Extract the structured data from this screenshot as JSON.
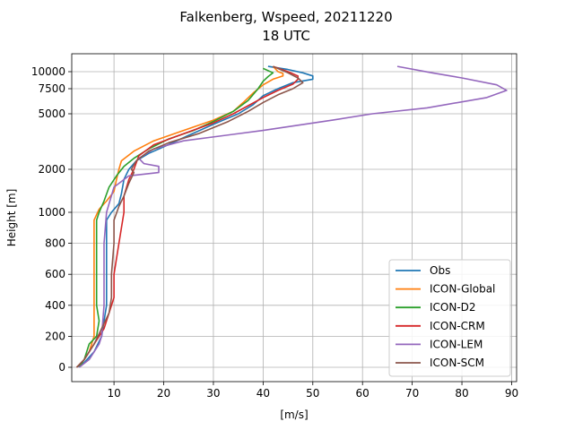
{
  "chart_data": {
    "type": "line",
    "title": "Falkenberg, Wspeed, 20211220",
    "subtitle": "18 UTC",
    "xlabel": "[m/s]",
    "ylabel": "Height [m]",
    "xlim": [
      1.5,
      91
    ],
    "x_ticks": [
      10,
      20,
      30,
      40,
      50,
      60,
      70,
      80,
      90
    ],
    "y_ticks": [
      {
        "value": 0,
        "label": "0"
      },
      {
        "value": 200,
        "label": "200"
      },
      {
        "value": 400,
        "label": "400"
      },
      {
        "value": 600,
        "label": "600"
      },
      {
        "value": 800,
        "label": "800"
      },
      {
        "value": 1000,
        "label": "1000"
      },
      {
        "value": 2000,
        "label": "2000"
      },
      {
        "value": 5000,
        "label": "5000"
      },
      {
        "value": 7500,
        "label": "7500"
      },
      {
        "value": 10000,
        "label": "10000"
      }
    ],
    "grid": true,
    "legend_position": "lower-right",
    "series": [
      {
        "name": "Obs",
        "color": "#1f77b4",
        "points": [
          [
            2.5,
            0
          ],
          [
            4,
            30
          ],
          [
            6,
            100
          ],
          [
            7.5,
            200
          ],
          [
            8.5,
            400
          ],
          [
            8.5,
            600
          ],
          [
            8.5,
            800
          ],
          [
            8.5,
            950
          ],
          [
            9.5,
            1000
          ],
          [
            11,
            1150
          ],
          [
            11.5,
            1350
          ],
          [
            12,
            1700
          ],
          [
            13,
            2000
          ],
          [
            14.5,
            2300
          ],
          [
            17,
            2600
          ],
          [
            20,
            2900
          ],
          [
            25,
            3500
          ],
          [
            30,
            4200
          ],
          [
            35,
            5000
          ],
          [
            38,
            5800
          ],
          [
            40,
            6700
          ],
          [
            43,
            7500
          ],
          [
            46,
            8300
          ],
          [
            50,
            8800
          ],
          [
            50,
            9300
          ],
          [
            48,
            9800
          ],
          [
            45,
            10200
          ],
          [
            41,
            10500
          ]
        ]
      },
      {
        "name": "ICON-Global",
        "color": "#ff7f0e",
        "points": [
          [
            2.5,
            0
          ],
          [
            4,
            50
          ],
          [
            5,
            100
          ],
          [
            6,
            200
          ],
          [
            6,
            400
          ],
          [
            6,
            600
          ],
          [
            6,
            800
          ],
          [
            6,
            950
          ],
          [
            7,
            1050
          ],
          [
            8.5,
            1200
          ],
          [
            10,
            1400
          ],
          [
            10.5,
            1700
          ],
          [
            11,
            2000
          ],
          [
            11.5,
            2300
          ],
          [
            14,
            2700
          ],
          [
            18,
            3200
          ],
          [
            24,
            3800
          ],
          [
            30,
            4500
          ],
          [
            34,
            5200
          ],
          [
            36,
            6000
          ],
          [
            38,
            7000
          ],
          [
            40,
            8000
          ],
          [
            42,
            8800
          ],
          [
            44,
            9300
          ],
          [
            44,
            9700
          ],
          [
            43,
            10000
          ],
          [
            42,
            10500
          ]
        ]
      },
      {
        "name": "ICON-D2",
        "color": "#2ca02c",
        "points": [
          [
            3,
            0
          ],
          [
            4,
            50
          ],
          [
            5,
            150
          ],
          [
            6.5,
            200
          ],
          [
            7,
            300
          ],
          [
            6.5,
            400
          ],
          [
            6.5,
            600
          ],
          [
            6.5,
            800
          ],
          [
            6.5,
            950
          ],
          [
            7,
            1000
          ],
          [
            8,
            1200
          ],
          [
            9,
            1500
          ],
          [
            10.5,
            1800
          ],
          [
            12,
            2100
          ],
          [
            14,
            2400
          ],
          [
            17,
            2800
          ],
          [
            21,
            3300
          ],
          [
            26,
            3800
          ],
          [
            30,
            4400
          ],
          [
            34,
            5200
          ],
          [
            37,
            6200
          ],
          [
            39,
            7500
          ],
          [
            40,
            8500
          ],
          [
            41,
            9200
          ],
          [
            42,
            9800
          ],
          [
            40,
            10300
          ]
        ]
      },
      {
        "name": "ICON-CRM",
        "color": "#d62728",
        "points": [
          [
            2.5,
            0
          ],
          [
            4,
            50
          ],
          [
            6,
            150
          ],
          [
            8,
            250
          ],
          [
            9,
            350
          ],
          [
            10,
            450
          ],
          [
            10,
            600
          ],
          [
            11,
            800
          ],
          [
            12,
            1000
          ],
          [
            12,
            1300
          ],
          [
            13,
            1700
          ],
          [
            14,
            2000
          ],
          [
            15,
            2500
          ],
          [
            18,
            3000
          ],
          [
            24,
            3600
          ],
          [
            30,
            4300
          ],
          [
            34,
            5000
          ],
          [
            37,
            5700
          ],
          [
            40,
            6500
          ],
          [
            43,
            7300
          ],
          [
            46,
            8100
          ],
          [
            47,
            8800
          ],
          [
            47,
            9300
          ],
          [
            45,
            10000
          ],
          [
            42,
            10500
          ]
        ]
      },
      {
        "name": "ICON-LEM",
        "color": "#9467bd",
        "points": [
          [
            3,
            0
          ],
          [
            5,
            50
          ],
          [
            7,
            150
          ],
          [
            7.5,
            200
          ],
          [
            8,
            400
          ],
          [
            8,
            600
          ],
          [
            8,
            800
          ],
          [
            8.5,
            1000
          ],
          [
            10,
            1500
          ],
          [
            13,
            1800
          ],
          [
            19,
            1900
          ],
          [
            19,
            2100
          ],
          [
            16,
            2200
          ],
          [
            15,
            2400
          ],
          [
            18,
            2800
          ],
          [
            24,
            3200
          ],
          [
            40,
            3800
          ],
          [
            54,
            4500
          ],
          [
            62,
            5000
          ],
          [
            73,
            5500
          ],
          [
            85,
            6500
          ],
          [
            89,
            7300
          ],
          [
            87,
            8000
          ],
          [
            80,
            9000
          ],
          [
            74,
            9800
          ],
          [
            67,
            10500
          ]
        ]
      },
      {
        "name": "ICON-SCM",
        "color": "#8c564b",
        "points": [
          [
            2.5,
            0
          ],
          [
            4,
            50
          ],
          [
            6,
            150
          ],
          [
            7.5,
            250
          ],
          [
            9,
            350
          ],
          [
            9.5,
            450
          ],
          [
            9.5,
            600
          ],
          [
            10,
            800
          ],
          [
            10,
            950
          ],
          [
            11,
            1100
          ],
          [
            12,
            1300
          ],
          [
            13,
            1600
          ],
          [
            14,
            1900
          ],
          [
            13.5,
            2000
          ],
          [
            14.5,
            2300
          ],
          [
            17,
            2700
          ],
          [
            21,
            3100
          ],
          [
            27,
            3600
          ],
          [
            33,
            4400
          ],
          [
            37,
            5200
          ],
          [
            40,
            6000
          ],
          [
            43,
            6800
          ],
          [
            46,
            7500
          ],
          [
            48,
            8300
          ],
          [
            47,
            9000
          ],
          [
            45,
            9800
          ],
          [
            42,
            10500
          ]
        ]
      }
    ]
  }
}
